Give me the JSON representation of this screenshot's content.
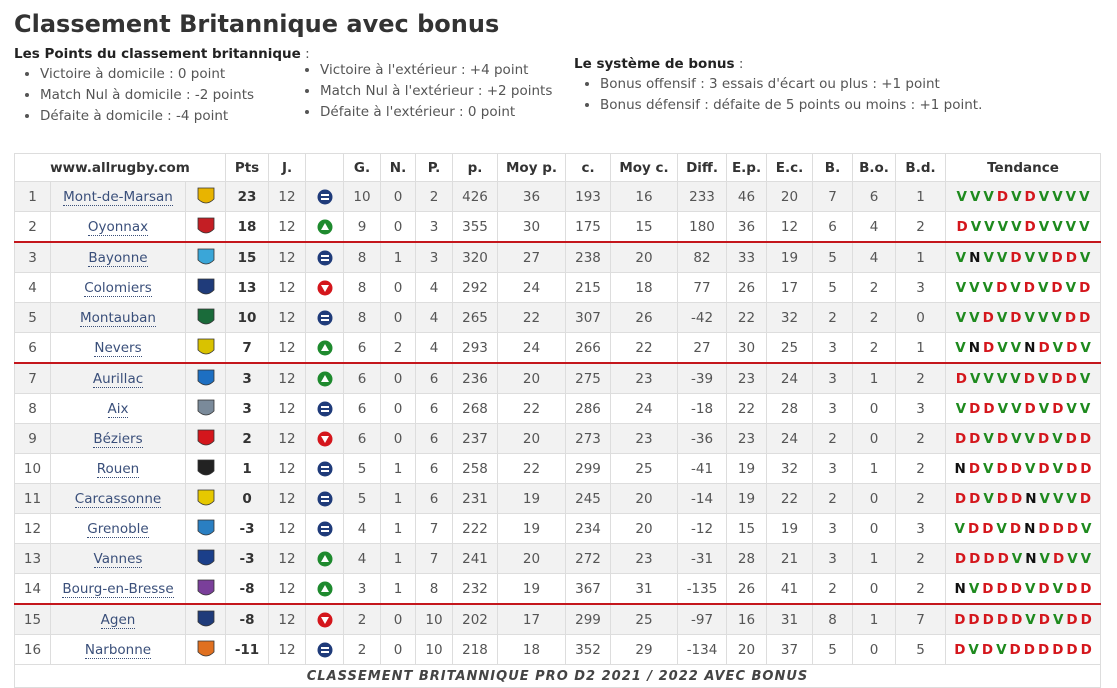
{
  "header": {
    "title": "Classement Britannique avec bonus"
  },
  "points": {
    "label": "Les Points du classement britannique",
    "colon": ":",
    "home": [
      "Victoire à domicile : 0 point",
      "Match Nul à domicile : -2 points",
      "Défaite à domicile : -4 point"
    ],
    "away": [
      "Victoire à l'extérieur : +4 point",
      "Match Nul à l'extérieur : +2 points",
      "Défaite à l'extérieur : 0 point"
    ]
  },
  "bonus": {
    "label": "Le système de bonus",
    "colon": ":",
    "items": [
      "Bonus offensif : 3 essais d'écart ou plus : +1 point",
      "Bonus défensif : défaite de 5 points ou moins : +1 point."
    ]
  },
  "table": {
    "columns": {
      "site": "www.allrugby.com",
      "pts": "Pts",
      "j": "J.",
      "g": "G.",
      "n": "N.",
      "p": "P.",
      "pp": "p.",
      "moyp": "Moy p.",
      "c": "c.",
      "moyc": "Moy c.",
      "diff": "Diff.",
      "ep": "E.p.",
      "ec": "E.c.",
      "b": "B.",
      "bo": "B.o.",
      "bd": "B.d.",
      "trend": "Tendance"
    },
    "rows": [
      {
        "rank": 1,
        "team": "Mont-de-Marsan",
        "pts": 23,
        "j": 12,
        "move": "same",
        "g": 10,
        "n": 0,
        "p": 2,
        "pp": 426,
        "moyp": 36,
        "c": 193,
        "moyc": 16,
        "diff": 233,
        "ep": 46,
        "ec": 20,
        "b": 7,
        "bo": 6,
        "bd": 1,
        "trend": [
          "V",
          "V",
          "V",
          "D",
          "V",
          "D",
          "V",
          "V",
          "V",
          "V"
        ]
      },
      {
        "rank": 2,
        "team": "Oyonnax",
        "pts": 18,
        "j": 12,
        "move": "up",
        "g": 9,
        "n": 0,
        "p": 3,
        "pp": 355,
        "moyp": 30,
        "c": 175,
        "moyc": 15,
        "diff": 180,
        "ep": 36,
        "ec": 12,
        "b": 6,
        "bo": 4,
        "bd": 2,
        "trend": [
          "D",
          "V",
          "V",
          "V",
          "V",
          "D",
          "V",
          "V",
          "V",
          "V"
        ]
      },
      {
        "rank": 3,
        "team": "Bayonne",
        "pts": 15,
        "j": 12,
        "move": "same",
        "g": 8,
        "n": 1,
        "p": 3,
        "pp": 320,
        "moyp": 27,
        "c": 238,
        "moyc": 20,
        "diff": 82,
        "ep": 33,
        "ec": 19,
        "b": 5,
        "bo": 4,
        "bd": 1,
        "trend": [
          "V",
          "N",
          "V",
          "V",
          "D",
          "V",
          "V",
          "D",
          "D",
          "V"
        ]
      },
      {
        "rank": 4,
        "team": "Colomiers",
        "pts": 13,
        "j": 12,
        "move": "down",
        "g": 8,
        "n": 0,
        "p": 4,
        "pp": 292,
        "moyp": 24,
        "c": 215,
        "moyc": 18,
        "diff": 77,
        "ep": 26,
        "ec": 17,
        "b": 5,
        "bo": 2,
        "bd": 3,
        "trend": [
          "V",
          "V",
          "V",
          "D",
          "V",
          "D",
          "V",
          "D",
          "V",
          "D"
        ]
      },
      {
        "rank": 5,
        "team": "Montauban",
        "pts": 10,
        "j": 12,
        "move": "same",
        "g": 8,
        "n": 0,
        "p": 4,
        "pp": 265,
        "moyp": 22,
        "c": 307,
        "moyc": 26,
        "diff": -42,
        "ep": 22,
        "ec": 32,
        "b": 2,
        "bo": 2,
        "bd": 0,
        "trend": [
          "V",
          "V",
          "D",
          "V",
          "D",
          "V",
          "V",
          "V",
          "D",
          "D"
        ]
      },
      {
        "rank": 6,
        "team": "Nevers",
        "pts": 7,
        "j": 12,
        "move": "up",
        "g": 6,
        "n": 2,
        "p": 4,
        "pp": 293,
        "moyp": 24,
        "c": 266,
        "moyc": 22,
        "diff": 27,
        "ep": 30,
        "ec": 25,
        "b": 3,
        "bo": 2,
        "bd": 1,
        "trend": [
          "V",
          "N",
          "D",
          "V",
          "V",
          "N",
          "D",
          "V",
          "D",
          "V"
        ]
      },
      {
        "rank": 7,
        "team": "Aurillac",
        "pts": 3,
        "j": 12,
        "move": "up",
        "g": 6,
        "n": 0,
        "p": 6,
        "pp": 236,
        "moyp": 20,
        "c": 275,
        "moyc": 23,
        "diff": -39,
        "ep": 23,
        "ec": 24,
        "b": 3,
        "bo": 1,
        "bd": 2,
        "trend": [
          "D",
          "V",
          "V",
          "V",
          "V",
          "D",
          "V",
          "D",
          "D",
          "V"
        ]
      },
      {
        "rank": 8,
        "team": "Aix",
        "pts": 3,
        "j": 12,
        "move": "same",
        "g": 6,
        "n": 0,
        "p": 6,
        "pp": 268,
        "moyp": 22,
        "c": 286,
        "moyc": 24,
        "diff": -18,
        "ep": 22,
        "ec": 28,
        "b": 3,
        "bo": 0,
        "bd": 3,
        "trend": [
          "V",
          "D",
          "D",
          "V",
          "V",
          "D",
          "V",
          "D",
          "V",
          "V"
        ]
      },
      {
        "rank": 9,
        "team": "Béziers",
        "pts": 2,
        "j": 12,
        "move": "down",
        "g": 6,
        "n": 0,
        "p": 6,
        "pp": 237,
        "moyp": 20,
        "c": 273,
        "moyc": 23,
        "diff": -36,
        "ep": 23,
        "ec": 24,
        "b": 2,
        "bo": 0,
        "bd": 2,
        "trend": [
          "D",
          "D",
          "V",
          "D",
          "V",
          "V",
          "D",
          "V",
          "D",
          "D"
        ]
      },
      {
        "rank": 10,
        "team": "Rouen",
        "pts": 1,
        "j": 12,
        "move": "same",
        "g": 5,
        "n": 1,
        "p": 6,
        "pp": 258,
        "moyp": 22,
        "c": 299,
        "moyc": 25,
        "diff": -41,
        "ep": 19,
        "ec": 32,
        "b": 3,
        "bo": 1,
        "bd": 2,
        "trend": [
          "N",
          "D",
          "V",
          "D",
          "D",
          "V",
          "D",
          "V",
          "D",
          "D"
        ]
      },
      {
        "rank": 11,
        "team": "Carcassonne",
        "pts": 0,
        "j": 12,
        "move": "same",
        "g": 5,
        "n": 1,
        "p": 6,
        "pp": 231,
        "moyp": 19,
        "c": 245,
        "moyc": 20,
        "diff": -14,
        "ep": 19,
        "ec": 22,
        "b": 2,
        "bo": 0,
        "bd": 2,
        "trend": [
          "D",
          "D",
          "V",
          "D",
          "D",
          "N",
          "V",
          "V",
          "V",
          "D"
        ]
      },
      {
        "rank": 12,
        "team": "Grenoble",
        "pts": -3,
        "j": 12,
        "move": "same",
        "g": 4,
        "n": 1,
        "p": 7,
        "pp": 222,
        "moyp": 19,
        "c": 234,
        "moyc": 20,
        "diff": -12,
        "ep": 15,
        "ec": 19,
        "b": 3,
        "bo": 0,
        "bd": 3,
        "trend": [
          "V",
          "D",
          "D",
          "V",
          "D",
          "N",
          "D",
          "D",
          "D",
          "V"
        ]
      },
      {
        "rank": 13,
        "team": "Vannes",
        "pts": -3,
        "j": 12,
        "move": "up",
        "g": 4,
        "n": 1,
        "p": 7,
        "pp": 241,
        "moyp": 20,
        "c": 272,
        "moyc": 23,
        "diff": -31,
        "ep": 28,
        "ec": 21,
        "b": 3,
        "bo": 1,
        "bd": 2,
        "trend": [
          "D",
          "D",
          "D",
          "D",
          "V",
          "N",
          "V",
          "D",
          "V",
          "V"
        ]
      },
      {
        "rank": 14,
        "team": "Bourg-en-Bresse",
        "pts": -8,
        "j": 12,
        "move": "up",
        "g": 3,
        "n": 1,
        "p": 8,
        "pp": 232,
        "moyp": 19,
        "c": 367,
        "moyc": 31,
        "diff": -135,
        "ep": 26,
        "ec": 41,
        "b": 2,
        "bo": 0,
        "bd": 2,
        "trend": [
          "N",
          "V",
          "D",
          "D",
          "D",
          "V",
          "D",
          "V",
          "D",
          "D"
        ]
      },
      {
        "rank": 15,
        "team": "Agen",
        "pts": -8,
        "j": 12,
        "move": "down",
        "g": 2,
        "n": 0,
        "p": 10,
        "pp": 202,
        "moyp": 17,
        "c": 299,
        "moyc": 25,
        "diff": -97,
        "ep": 16,
        "ec": 31,
        "b": 8,
        "bo": 1,
        "bd": 7,
        "trend": [
          "D",
          "D",
          "D",
          "D",
          "D",
          "V",
          "D",
          "V",
          "D",
          "D"
        ]
      },
      {
        "rank": 16,
        "team": "Narbonne",
        "pts": -11,
        "j": 12,
        "move": "same",
        "g": 2,
        "n": 0,
        "p": 10,
        "pp": 218,
        "moyp": 18,
        "c": 352,
        "moyc": 29,
        "diff": -134,
        "ep": 20,
        "ec": 37,
        "b": 5,
        "bo": 0,
        "bd": 5,
        "trend": [
          "D",
          "V",
          "D",
          "V",
          "D",
          "D",
          "D",
          "D",
          "D",
          "D"
        ]
      }
    ],
    "footer": "CLASSEMENT BRITANNIQUE PRO D2 2021 / 2022 AVEC BONUS"
  }
}
